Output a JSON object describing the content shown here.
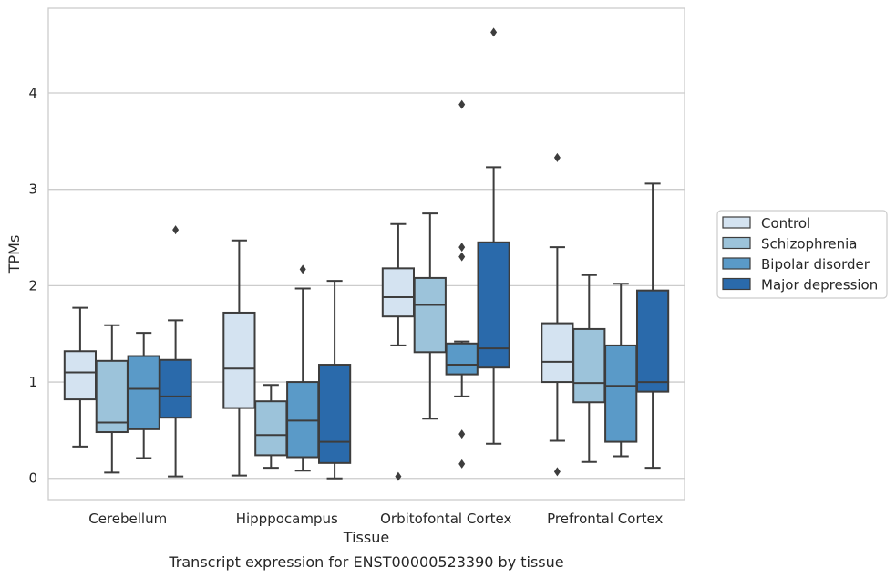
{
  "caption": "Transcript expression for ENST00000523390 by tissue",
  "chart_data": {
    "type": "box",
    "xlabel": "Tissue",
    "ylabel": "TPMs",
    "ylim": [
      -0.22,
      4.88
    ],
    "yticks": [
      0,
      1,
      2,
      3,
      4
    ],
    "ytick_labels": [
      "0",
      "1",
      "2",
      "3",
      "4"
    ],
    "grid": "horizontal",
    "legend_position": "right",
    "categories": [
      "Cerebellum",
      "Hipppocampus",
      "Orbitofontal Cortex",
      "Prefrontal Cortex"
    ],
    "series": [
      {
        "name": "Control",
        "color": "#d4e3f1",
        "boxes": [
          {
            "whisker_low": 0.33,
            "q1": 0.82,
            "median": 1.1,
            "q3": 1.32,
            "whisker_high": 1.77,
            "outliers": []
          },
          {
            "whisker_low": 0.03,
            "q1": 0.73,
            "median": 1.14,
            "q3": 1.72,
            "whisker_high": 2.47,
            "outliers": []
          },
          {
            "whisker_low": 1.38,
            "q1": 1.68,
            "median": 1.88,
            "q3": 2.18,
            "whisker_high": 2.64,
            "outliers": [
              0.02
            ]
          },
          {
            "whisker_low": 0.39,
            "q1": 1.0,
            "median": 1.21,
            "q3": 1.61,
            "whisker_high": 2.4,
            "outliers": [
              3.33,
              0.07
            ]
          }
        ]
      },
      {
        "name": "Schizophrenia",
        "color": "#9cc3da",
        "boxes": [
          {
            "whisker_low": 0.06,
            "q1": 0.48,
            "median": 0.58,
            "q3": 1.22,
            "whisker_high": 1.59,
            "outliers": []
          },
          {
            "whisker_low": 0.11,
            "q1": 0.24,
            "median": 0.45,
            "q3": 0.8,
            "whisker_high": 0.97,
            "outliers": []
          },
          {
            "whisker_low": 0.62,
            "q1": 1.31,
            "median": 1.8,
            "q3": 2.08,
            "whisker_high": 2.75,
            "outliers": []
          },
          {
            "whisker_low": 0.17,
            "q1": 0.79,
            "median": 0.99,
            "q3": 1.55,
            "whisker_high": 2.11,
            "outliers": []
          }
        ]
      },
      {
        "name": "Bipolar disorder",
        "color": "#5a9ac8",
        "boxes": [
          {
            "whisker_low": 0.21,
            "q1": 0.51,
            "median": 0.93,
            "q3": 1.27,
            "whisker_high": 1.51,
            "outliers": []
          },
          {
            "whisker_low": 0.08,
            "q1": 0.22,
            "median": 0.6,
            "q3": 1.0,
            "whisker_high": 1.97,
            "outliers": [
              2.17
            ]
          },
          {
            "whisker_low": 0.85,
            "q1": 1.08,
            "median": 1.18,
            "q3": 1.4,
            "whisker_high": 1.42,
            "outliers": [
              2.4,
              2.3,
              3.88,
              0.46,
              0.15
            ]
          },
          {
            "whisker_low": 0.23,
            "q1": 0.38,
            "median": 0.96,
            "q3": 1.38,
            "whisker_high": 2.02,
            "outliers": []
          }
        ]
      },
      {
        "name": "Major depression",
        "color": "#2a6aab",
        "boxes": [
          {
            "whisker_low": 0.02,
            "q1": 0.63,
            "median": 0.85,
            "q3": 1.23,
            "whisker_high": 1.64,
            "outliers": [
              2.58
            ]
          },
          {
            "whisker_low": 0.0,
            "q1": 0.16,
            "median": 0.38,
            "q3": 1.18,
            "whisker_high": 2.05,
            "outliers": []
          },
          {
            "whisker_low": 0.36,
            "q1": 1.15,
            "median": 1.35,
            "q3": 2.45,
            "whisker_high": 3.23,
            "outliers": [
              4.63
            ]
          },
          {
            "whisker_low": 0.11,
            "q1": 0.9,
            "median": 1.0,
            "q3": 1.95,
            "whisker_high": 3.06,
            "outliers": []
          }
        ]
      }
    ]
  }
}
